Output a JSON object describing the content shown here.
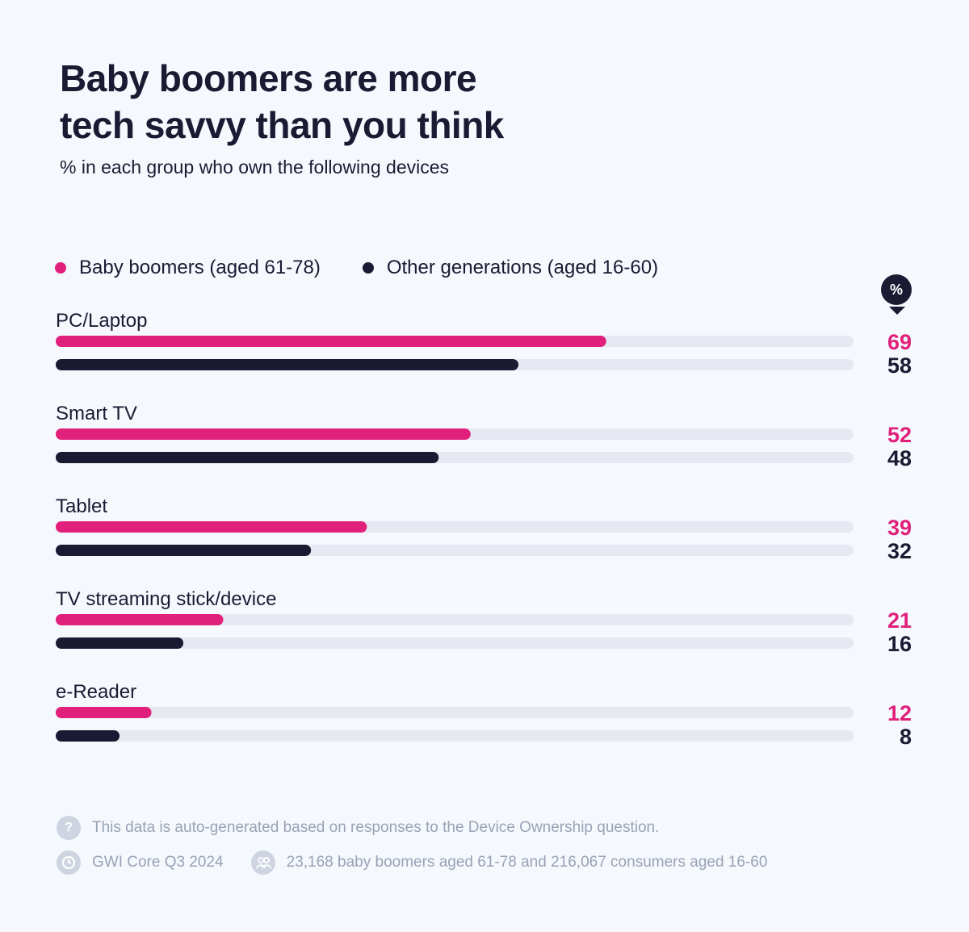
{
  "header": {
    "title_line1": "Baby boomers are more",
    "title_line2": "tech savvy than you think",
    "subtitle": "% in each group who own the following devices"
  },
  "legend": [
    {
      "label": "Baby boomers (aged 61-78)",
      "color": "#e0207a"
    },
    {
      "label": "Other generations (aged 16-60)",
      "color": "#1b1a33"
    }
  ],
  "unit_badge": "%",
  "colors": {
    "boomers": "#e0207a",
    "others": "#1b1a33",
    "track": "#e6e9f2"
  },
  "chart_data": {
    "type": "bar",
    "orientation": "horizontal",
    "categories": [
      "PC/Laptop",
      "Smart TV",
      "Tablet",
      "TV streaming stick/device",
      "e-Reader"
    ],
    "series": [
      {
        "name": "Baby boomers (aged 61-78)",
        "values": [
          69,
          52,
          39,
          21,
          12
        ]
      },
      {
        "name": "Other generations (aged 16-60)",
        "values": [
          58,
          48,
          32,
          16,
          8
        ]
      }
    ],
    "xlim": [
      0,
      100
    ],
    "grid": false,
    "legend_position": "top-left"
  },
  "footer": {
    "note": "This data is auto-generated based on responses to the Device Ownership question.",
    "note_icon": "question-icon",
    "source": "GWI Core Q3 2024",
    "source_icon": "gwi-logo-icon",
    "sample": "23,168 baby boomers aged 61-78 and 216,067 consumers aged 16-60",
    "sample_icon": "people-icon"
  }
}
